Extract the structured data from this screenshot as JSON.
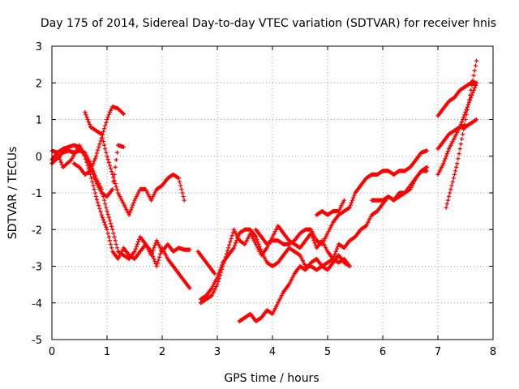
{
  "chart_data": {
    "type": "scatter",
    "title": "Day 175 of 2014, Sidereal Day-to-day VTEC variation (SDTVAR) for receiver hnis",
    "xlabel": "GPS time / hours",
    "ylabel": "SDTVAR / TECUs",
    "xlim": [
      0,
      8
    ],
    "ylim": [
      -5,
      3
    ],
    "xticks": [
      0,
      1,
      2,
      3,
      4,
      5,
      6,
      7,
      8
    ],
    "yticks": [
      -5,
      -4,
      -3,
      -2,
      -1,
      0,
      1,
      2,
      3
    ],
    "grid": true,
    "marker": "+",
    "color": "#ff0000",
    "series": [
      {
        "x": [
          0.0,
          0.1,
          0.2,
          0.35,
          0.5,
          0.6,
          0.7,
          0.8,
          0.9,
          1.0,
          1.1,
          1.2,
          1.3
        ],
        "y": [
          0.15,
          0.1,
          -0.3,
          -0.1,
          0.3,
          0.0,
          -0.3,
          -0.7,
          -1.0,
          -1.1,
          -0.9,
          0.3,
          0.25
        ]
      },
      {
        "x": [
          0.0,
          0.1,
          0.2,
          0.3,
          0.4,
          0.5,
          0.6,
          0.7,
          0.8,
          0.9,
          1.0,
          1.1,
          1.2,
          1.3,
          1.4,
          1.5,
          1.6,
          1.7,
          1.8,
          1.9,
          2.0,
          2.1,
          2.2,
          2.3,
          2.4,
          2.5
        ],
        "y": [
          -0.1,
          0.1,
          0.2,
          0.25,
          0.3,
          0.25,
          0.0,
          -0.5,
          -1.1,
          -1.6,
          -2.0,
          -2.6,
          -2.8,
          -2.5,
          -2.7,
          -2.8,
          -2.6,
          -2.4,
          -2.7,
          -2.3,
          -2.6,
          -2.4,
          -2.6,
          -2.5,
          -2.55,
          -2.55
        ]
      },
      {
        "x": [
          0.0,
          0.1,
          0.2,
          0.3,
          0.4,
          0.5,
          0.6,
          0.7,
          0.8,
          0.9,
          1.0,
          1.1,
          1.2,
          1.3,
          1.4,
          1.5,
          1.6,
          1.7,
          1.8,
          1.9,
          2.0,
          2.1,
          2.2,
          2.3,
          2.4,
          2.5
        ],
        "y": [
          -0.2,
          -0.05,
          0.1,
          0.15,
          0.1,
          0.15,
          0.1,
          -0.2,
          -0.6,
          -0.9,
          -1.5,
          -2.0,
          -2.6,
          -2.7,
          -2.8,
          -2.6,
          -2.2,
          -2.4,
          -2.6,
          -3.0,
          -2.5,
          -2.8,
          -3.0,
          -3.2,
          -3.4,
          -3.6
        ]
      },
      {
        "x": [
          0.6,
          0.7,
          0.8,
          0.9,
          1.0,
          1.1,
          1.2,
          1.3,
          1.4,
          1.5,
          1.6,
          1.7,
          1.8,
          1.9,
          2.0,
          2.1,
          2.2,
          2.3,
          2.4
        ],
        "y": [
          1.2,
          0.8,
          0.7,
          0.6,
          0.0,
          -0.5,
          -1.0,
          -1.3,
          -1.6,
          -1.2,
          -0.9,
          -0.9,
          -1.2,
          -0.9,
          -0.8,
          -0.6,
          -0.5,
          -0.6,
          -1.2
        ]
      },
      {
        "x": [
          0.4,
          0.5,
          0.6,
          0.7,
          0.8,
          0.9,
          1.0,
          1.05,
          1.1,
          1.2,
          1.3
        ],
        "y": [
          -0.2,
          -0.3,
          -0.5,
          -0.4,
          0.0,
          0.5,
          1.0,
          1.2,
          1.35,
          1.3,
          1.15
        ]
      },
      {
        "x": [
          2.7,
          2.8,
          2.9,
          3.0,
          3.1,
          3.2,
          3.3,
          3.4,
          3.5,
          3.6,
          3.7,
          3.8,
          3.9,
          4.0,
          4.1,
          4.2,
          4.3,
          4.4,
          4.5,
          4.6,
          4.7,
          4.8,
          4.9,
          5.0,
          5.1,
          5.2,
          5.3,
          5.4
        ],
        "y": [
          -4.0,
          -3.9,
          -3.8,
          -3.5,
          -3.0,
          -2.5,
          -2.0,
          -2.3,
          -2.4,
          -2.1,
          -2.4,
          -2.7,
          -2.5,
          -2.2,
          -1.9,
          -2.1,
          -2.3,
          -2.4,
          -2.5,
          -2.3,
          -2.1,
          -2.5,
          -2.3,
          -2.6,
          -2.8,
          -2.9,
          -2.8,
          -3.0
        ]
      },
      {
        "x": [
          2.7,
          2.8,
          2.9,
          3.0,
          3.1,
          3.2,
          3.3,
          3.4,
          3.5,
          3.6,
          3.7,
          3.8,
          3.9,
          4.0,
          4.1,
          4.2,
          4.3,
          4.4,
          4.5,
          4.6,
          4.7,
          4.8,
          4.9,
          5.0,
          5.1,
          5.2,
          5.3,
          5.4,
          5.5,
          5.6,
          5.7,
          5.8,
          5.9,
          6.0,
          6.1,
          6.2,
          6.3,
          6.4,
          6.5,
          6.6,
          6.7,
          6.8
        ],
        "y": [
          -3.9,
          -3.8,
          -3.6,
          -3.3,
          -2.9,
          -2.7,
          -2.5,
          -2.1,
          -2.0,
          -2.0,
          -2.2,
          -2.6,
          -2.9,
          -3.0,
          -2.9,
          -2.7,
          -2.5,
          -2.6,
          -2.7,
          -3.0,
          -3.0,
          -3.1,
          -3.0,
          -2.9,
          -2.8,
          -2.4,
          -2.5,
          -2.3,
          -2.2,
          -2.0,
          -1.9,
          -1.6,
          -1.5,
          -1.3,
          -1.1,
          -1.2,
          -1.0,
          -1.0,
          -0.8,
          -0.6,
          -0.4,
          -0.4
        ]
      },
      {
        "x": [
          3.4,
          3.5,
          3.6,
          3.7,
          3.8,
          3.9,
          4.0,
          4.1,
          4.2,
          4.3,
          4.4,
          4.5,
          4.6,
          4.7,
          4.8,
          4.9,
          5.0,
          5.1,
          5.2,
          5.3,
          5.4
        ],
        "y": [
          -4.5,
          -4.4,
          -4.3,
          -4.5,
          -4.4,
          -4.2,
          -4.3,
          -4.0,
          -3.7,
          -3.5,
          -3.2,
          -3.0,
          -3.1,
          -2.9,
          -2.8,
          -3.0,
          -3.1,
          -2.9,
          -2.7,
          -2.9,
          -3.0
        ]
      },
      {
        "x": [
          3.7,
          3.8,
          3.9,
          4.0,
          4.1,
          4.2,
          4.3,
          4.4,
          4.5,
          4.6,
          4.7,
          4.8,
          4.9,
          5.0,
          5.1,
          5.2,
          5.3,
          5.4,
          5.5,
          5.6,
          5.7,
          5.8,
          5.9,
          6.0,
          6.1,
          6.2,
          6.3,
          6.4,
          6.5,
          6.6,
          6.7,
          6.8
        ],
        "y": [
          -2.0,
          -2.2,
          -2.4,
          -2.3,
          -2.3,
          -2.4,
          -2.4,
          -2.3,
          -2.1,
          -2.0,
          -2.0,
          -2.3,
          -2.4,
          -2.1,
          -1.8,
          -1.6,
          -1.5,
          -1.4,
          -1.0,
          -0.8,
          -0.6,
          -0.5,
          -0.5,
          -0.4,
          -0.4,
          -0.5,
          -0.4,
          -0.4,
          -0.3,
          -0.1,
          0.1,
          0.15
        ]
      },
      {
        "x": [
          4.8,
          4.9,
          5.0,
          5.1,
          5.2,
          5.3
        ],
        "y": [
          -1.6,
          -1.5,
          -1.6,
          -1.5,
          -1.5,
          -1.2
        ]
      },
      {
        "x": [
          5.8,
          5.9,
          6.0,
          6.1,
          6.2,
          6.3,
          6.4,
          6.5,
          6.6,
          6.7,
          6.8
        ],
        "y": [
          -1.2,
          -1.2,
          -1.2,
          -1.1,
          -1.2,
          -1.1,
          -1.0,
          -0.9,
          -0.6,
          -0.4,
          -0.3
        ]
      },
      {
        "x": [
          7.0,
          7.1,
          7.2,
          7.3,
          7.4,
          7.5,
          7.6,
          7.7
        ],
        "y": [
          -0.5,
          -0.2,
          0.2,
          0.5,
          0.8,
          1.2,
          1.6,
          2.0
        ]
      },
      {
        "x": [
          7.0,
          7.1,
          7.2,
          7.3,
          7.4,
          7.5,
          7.6,
          7.7
        ],
        "y": [
          1.1,
          1.3,
          1.5,
          1.6,
          1.8,
          1.9,
          2.0,
          2.0
        ]
      },
      {
        "x": [
          7.0,
          7.1,
          7.2,
          7.3,
          7.4,
          7.5,
          7.6,
          7.7
        ],
        "y": [
          0.2,
          0.4,
          0.6,
          0.7,
          0.8,
          0.8,
          0.9,
          1.0
        ]
      },
      {
        "x": [
          7.15,
          7.25,
          7.35,
          7.45,
          7.55,
          7.65,
          7.7
        ],
        "y": [
          -1.4,
          -0.8,
          -0.2,
          0.6,
          1.4,
          2.2,
          2.6
        ]
      },
      {
        "x": [
          2.65,
          2.75,
          2.85,
          2.95
        ],
        "y": [
          -2.6,
          -2.8,
          -3.0,
          -3.2
        ]
      }
    ]
  }
}
